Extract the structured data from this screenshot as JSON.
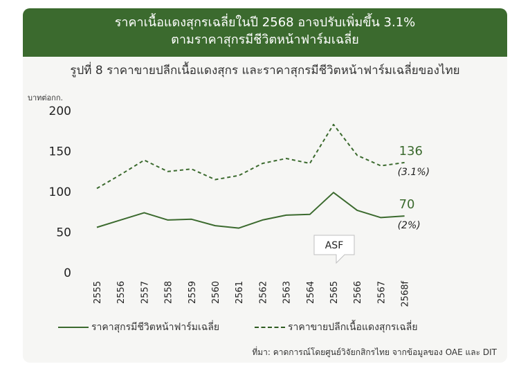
{
  "header": {
    "line1": "ราคาเนื้อแดงสุกรเฉลี่ยในปี 2568 อาจปรับเพิ่มขึ้น 3.1%",
    "line2": "ตามราคาสุกรมีชีวิตหน้าฟาร์มเฉลี่ย"
  },
  "figure_title": "รูปที่ 8 ราคาขายปลีกเนื้อแดงสุกร และราคาสุกรมีชีวิตหน้าฟาร์มเฉลี่ยของไทย",
  "unit_label": "บาทต่อกก.",
  "source": "ที่มา: คาดการณ์โดยศูนย์วิจัยกสิกรไทย จากข้อมูลของ OAE และ DIT",
  "colors": {
    "header_bg": "#3b6a2e",
    "line": "#3b6a2e",
    "label": "#3b6a2e"
  },
  "chart_data": {
    "type": "line",
    "title": "รูปที่ 8 ราคาขายปลีกเนื้อแดงสุกร และราคาสุกรมีชีวิตหน้าฟาร์มเฉลี่ยของไทย",
    "ylabel": "บาทต่อกก.",
    "xlabel": "",
    "ylim": [
      0,
      200
    ],
    "yticks": [
      0,
      50,
      100,
      150,
      200
    ],
    "grid": false,
    "legend_position": "bottom",
    "categories": [
      "2555",
      "2556",
      "2557",
      "2558",
      "2559",
      "2560",
      "2561",
      "2562",
      "2563",
      "2564",
      "2565",
      "2566",
      "2567",
      "2568f"
    ],
    "series": [
      {
        "name": "ราคาสุกรมีชีวิตหน้าฟาร์มเฉลี่ย",
        "style": "solid",
        "values": [
          56,
          65,
          74,
          65,
          66,
          58,
          55,
          65,
          71,
          72,
          99,
          77,
          68,
          70
        ],
        "end_label": "70",
        "change_label": "(2%)"
      },
      {
        "name": "ราคาขายปลีกเนื้อแดงสุกรเฉลี่ย",
        "style": "dashed",
        "values": [
          104,
          121,
          139,
          125,
          128,
          115,
          120,
          135,
          141,
          135,
          183,
          145,
          132,
          136
        ],
        "end_label": "136",
        "change_label": "(3.1%)"
      }
    ],
    "annotations": [
      {
        "text": "ASF",
        "category": "2565"
      }
    ]
  }
}
